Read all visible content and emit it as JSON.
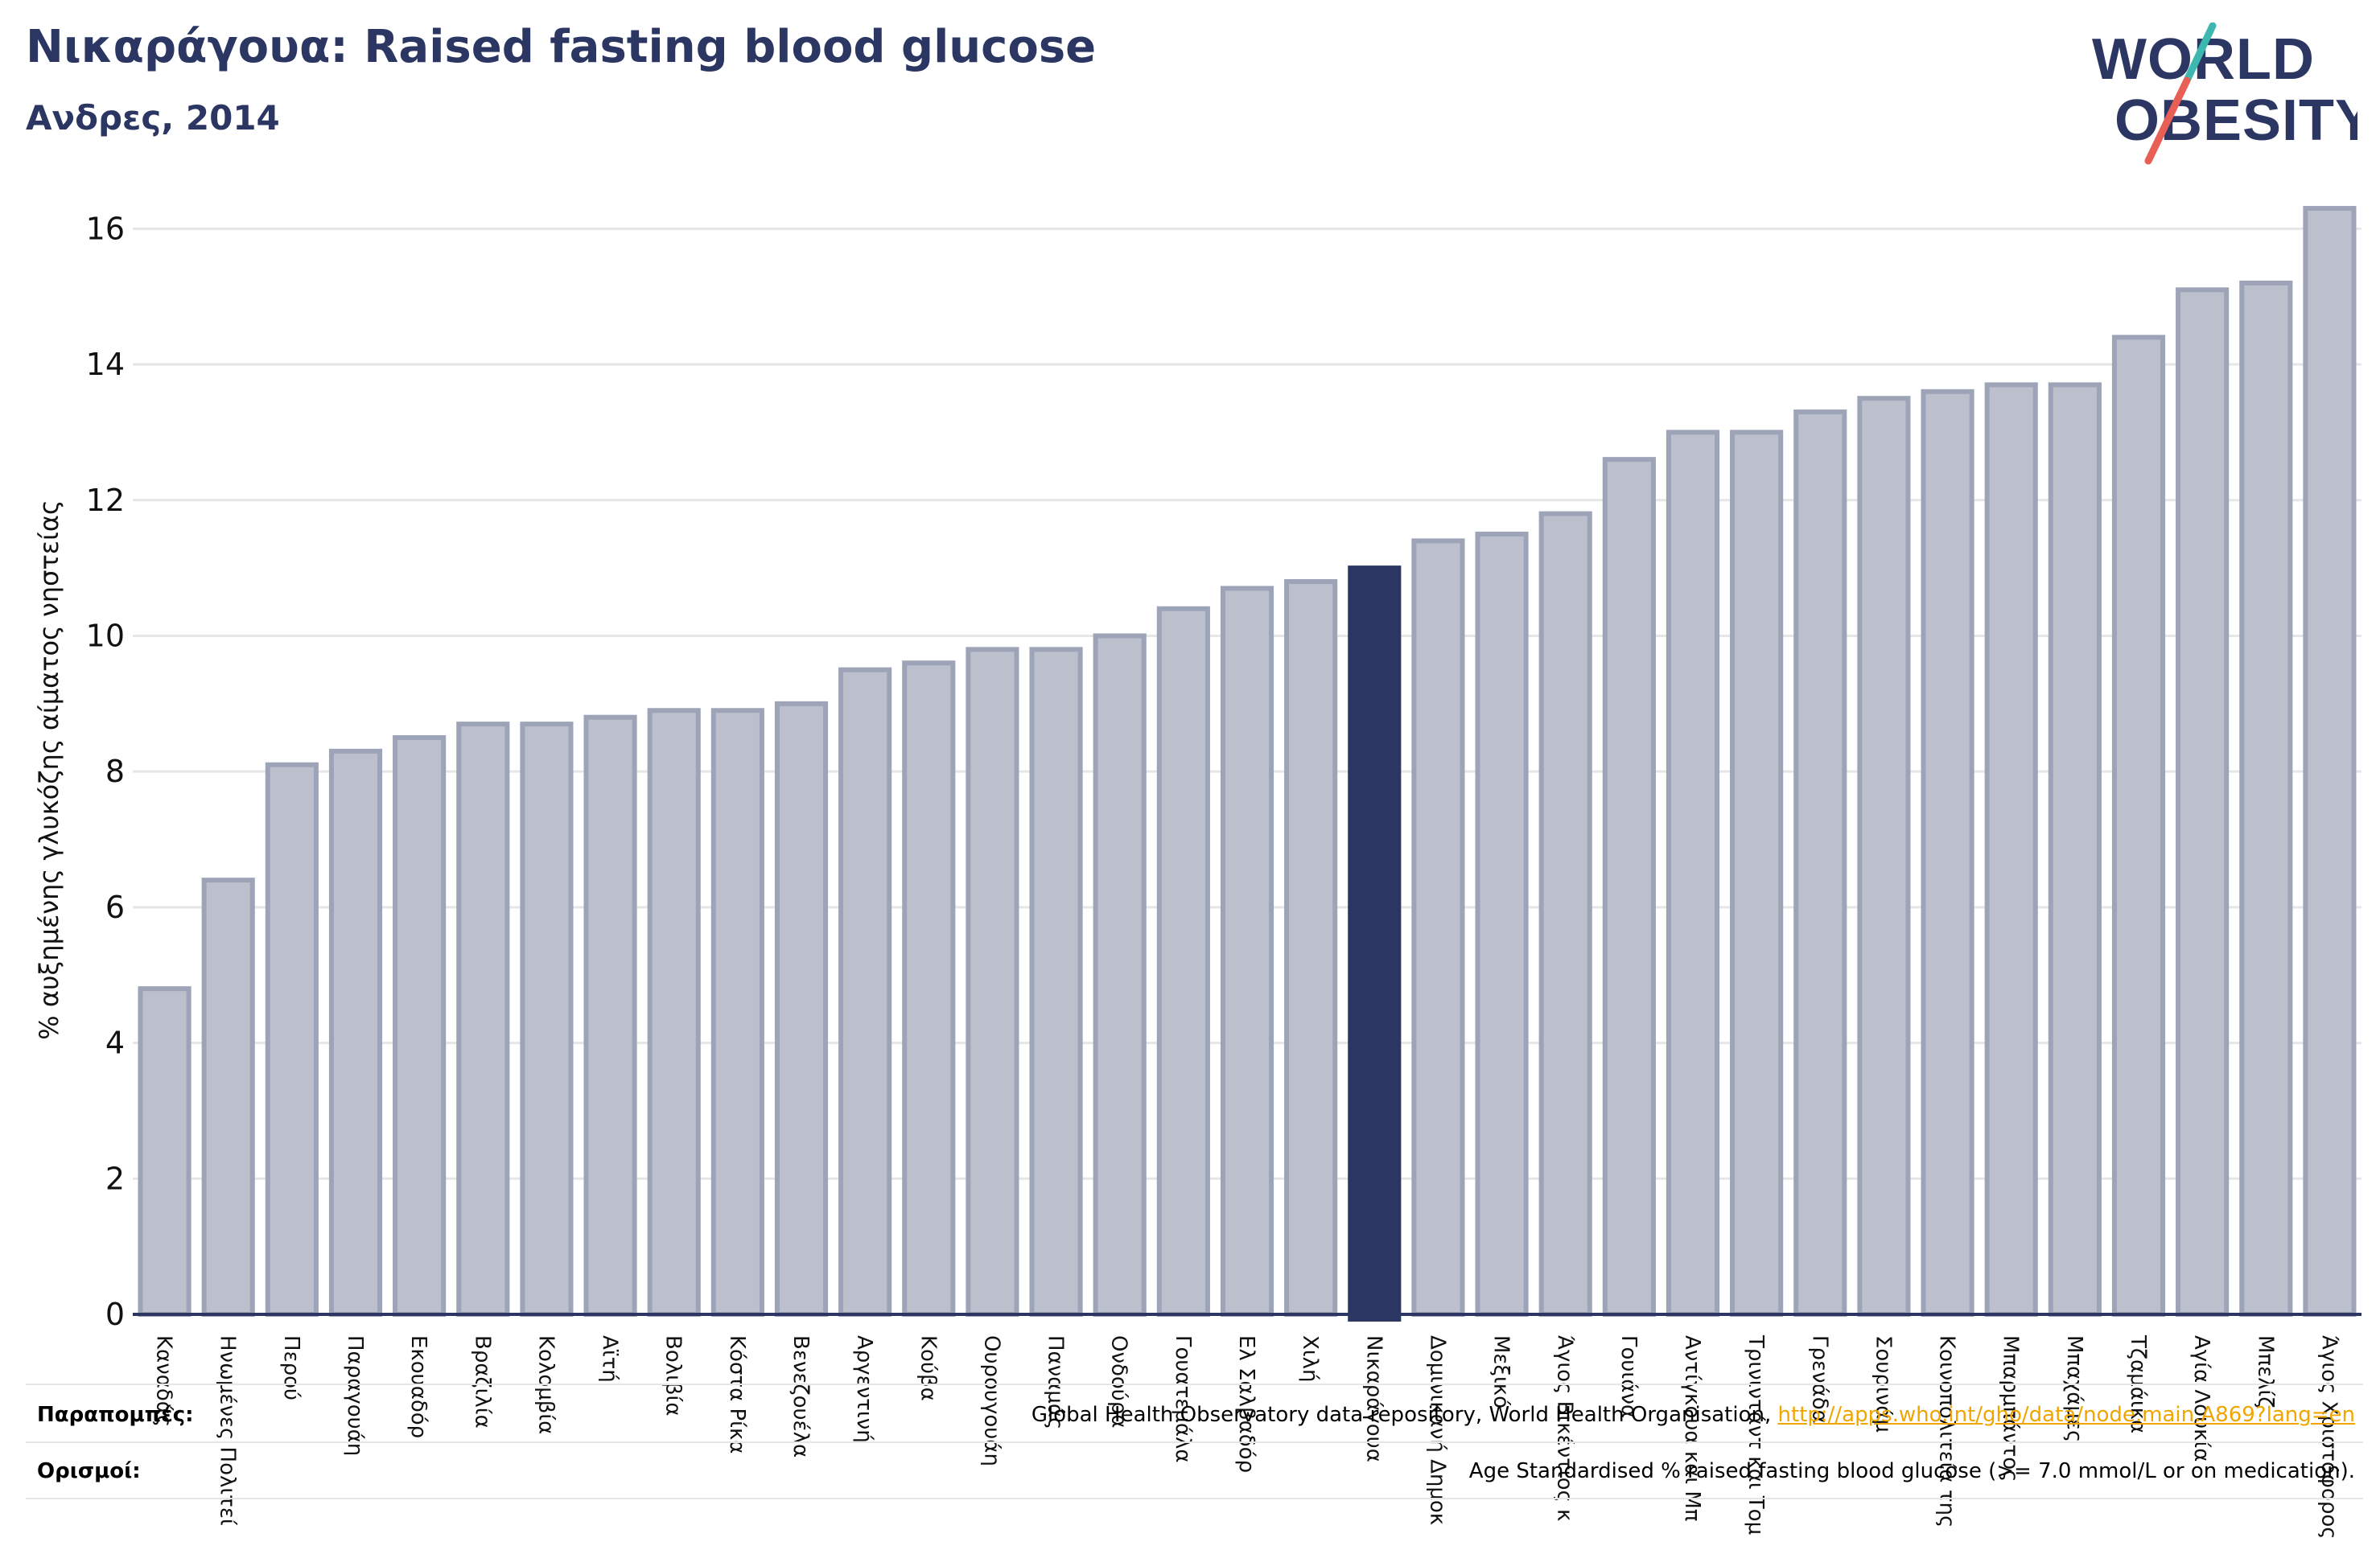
{
  "header": {
    "title": "Νικαράγουα: Raised fasting blood glucose",
    "subtitle": "Ανδρες, 2014"
  },
  "logo": {
    "line1": "WORLD",
    "line2": "OBESITY"
  },
  "colors": {
    "highlight": "#2b3663",
    "bar": "#bcc0cc",
    "bar_border": "#9ea4b8",
    "grid": "#e6e6e6",
    "logo_text": "#2b3663",
    "logo_slash_top": "#3cb8b0",
    "logo_slash_bottom": "#e85f56",
    "link": "#f0a500"
  },
  "chart_data": {
    "type": "bar",
    "ylabel": "% αυξημένης γλυκόζης αίματος νηστείας",
    "ylim": [
      0,
      17
    ],
    "yticks": [
      0,
      2,
      4,
      6,
      8,
      10,
      12,
      14,
      16
    ],
    "grid": true,
    "highlight": "Νικαράγουα",
    "categories": [
      "Καναδάς",
      "Ηνωμένες Πολιτείες",
      "Περού",
      "Παραγουάη",
      "Εκουαδόρ",
      "Βραζιλία",
      "Κολομβία",
      "Αϊτή",
      "Βολιβία",
      "Κόστα Ρίκα",
      "Βενεζουέλα",
      "Αργεντινή",
      "Κούβα",
      "Ουρουγουάη",
      "Παναμάς",
      "Ονδούρα",
      "Γουατεμάλα",
      "Ελ Σαλβαδόρ",
      "Χιλή",
      "Νικαράγουα",
      "Δομινικανή Δημοκρατία",
      "Μεξικό",
      "Άγιος Βικέντιος και Γρεναδίνες",
      "Γουιάνα",
      "Αντίγκουα και Μπαρμπούντα",
      "Τρινιντάντ και Τομπάγκο",
      "Γρενάδα",
      "Σουρινάμ",
      "Κοινοπολιτεία της Δομινίκας",
      "Μπαρμπάντος",
      "Μπαχάμες",
      "Τζαμάικα",
      "Αγία Λουκία",
      "Μπελίζ",
      "Άγιος Χριστόφορος και Νέβις"
    ],
    "tick_labels": [
      "Καναδάς",
      "Ηνωμένες Πολιτεί",
      "Περού",
      "Παραγουάη",
      "Εκουαδόρ",
      "Βραζιλία",
      "Κολομβία",
      "Αϊτή",
      "Βολιβία",
      "Κόστα Ρίκα",
      "Βενεζουέλα",
      "Αργεντινή",
      "Κούβα",
      "Ουρουγουάη",
      "Παναμάς",
      "Ονδούρα",
      "Γουατεμάλα",
      "Ελ Σαλβαδόρ",
      "Χιλή",
      "Νικαράγουα",
      "Δομινικανή Δημοκ",
      "Μεξικό",
      "Άγιος Βικέντιος κ",
      "Γουιάνα",
      "Αντίγκουα και Μπ",
      "Τρινιντάντ και Τομ",
      "Γρενάδα",
      "Σουρινάμ",
      "Κοινοπολιτεία της",
      "Μπαρμπάντος",
      "Μπαχάμες",
      "Τζαμάικα",
      "Αγία Λουκία",
      "Μπελίζ",
      "Άγιος Χριστόφορος"
    ],
    "values": [
      4.8,
      6.4,
      8.1,
      8.3,
      8.5,
      8.7,
      8.7,
      8.8,
      8.9,
      8.9,
      9.0,
      9.5,
      9.6,
      9.8,
      9.8,
      10.0,
      10.4,
      10.7,
      10.8,
      11.0,
      11.4,
      11.5,
      11.8,
      12.6,
      13.0,
      13.0,
      13.3,
      13.5,
      13.6,
      13.7,
      13.7,
      14.4,
      15.1,
      15.2,
      16.3
    ]
  },
  "footer": {
    "sources_label": "Παραπομπές:",
    "sources_text": "Global Health Observatory data repository, World Health Organisation, ",
    "sources_link": "http://apps.who.int/gho/data/node.main.A869?lang=en",
    "definitions_label": "Ορισμοί:",
    "definitions_text": "Age Standardised % raised fasting blood glucose (>= 7.0 mmol/L or on medication)."
  }
}
